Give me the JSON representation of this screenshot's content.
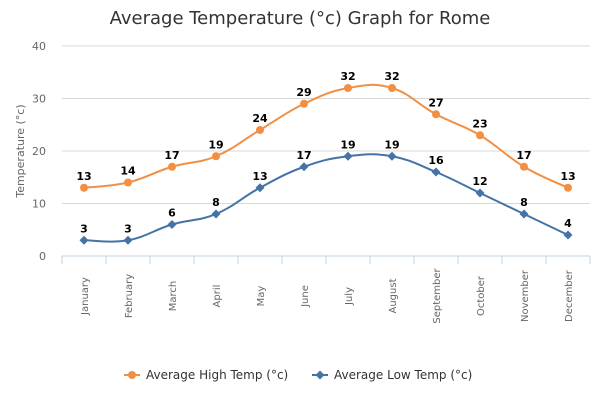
{
  "chart_data": {
    "type": "line",
    "title": "Average Temperature (°c) Graph for Rome",
    "ylabel": "Temperature (°c)",
    "xlabel": "",
    "ylim": [
      0,
      40
    ],
    "yticks": [
      0,
      10,
      20,
      30,
      40
    ],
    "grid": true,
    "legend_position": "bottom",
    "categories": [
      "January",
      "February",
      "March",
      "April",
      "May",
      "June",
      "July",
      "August",
      "September",
      "October",
      "November",
      "December"
    ],
    "series": [
      {
        "name": "Average High Temp (°c)",
        "color": "#f28f43",
        "marker": "circle",
        "values": [
          13,
          14,
          17,
          19,
          24,
          29,
          32,
          32,
          27,
          23,
          17,
          13
        ]
      },
      {
        "name": "Average Low Temp (°c)",
        "color": "#4572a7",
        "marker": "diamond",
        "values": [
          3,
          3,
          6,
          8,
          13,
          17,
          19,
          19,
          16,
          12,
          8,
          4
        ]
      }
    ]
  }
}
